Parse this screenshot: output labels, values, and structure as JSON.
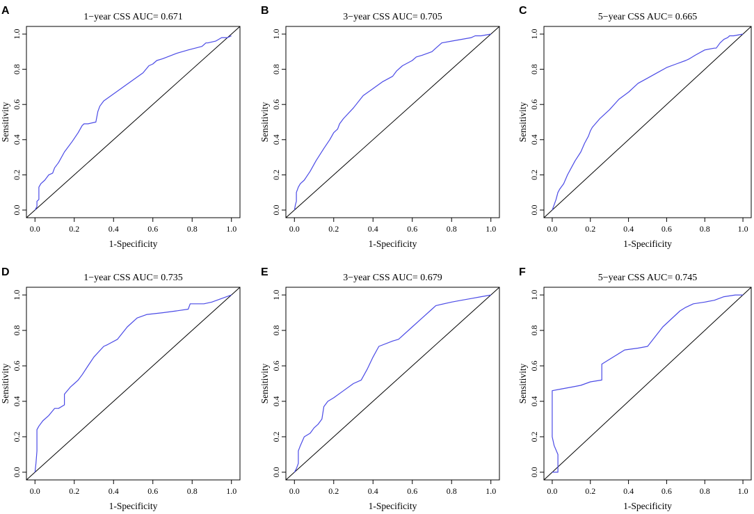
{
  "chart_data": [
    {
      "panel": "A",
      "type": "line",
      "title": "1−year CSS AUC= 0.671",
      "xlabel": "1-Specificity",
      "ylabel": "Sensitivity",
      "xlim": [
        0,
        1
      ],
      "ylim": [
        0,
        1
      ],
      "xticks": [
        "0.0",
        "0.2",
        "0.4",
        "0.6",
        "0.8",
        "1.0"
      ],
      "yticks": [
        "0.0",
        "0.2",
        "0.4",
        "0.6",
        "0.8",
        "1.0"
      ],
      "reference_line": [
        [
          0,
          0
        ],
        [
          1,
          1
        ]
      ],
      "series": [
        {
          "name": "ROC",
          "color": "#4a4ae6",
          "x": [
            0,
            0.01,
            0.01,
            0.02,
            0.02,
            0.03,
            0.05,
            0.07,
            0.09,
            0.1,
            0.12,
            0.15,
            0.19,
            0.22,
            0.24,
            0.25,
            0.27,
            0.31,
            0.32,
            0.33,
            0.35,
            0.45,
            0.55,
            0.58,
            0.6,
            0.62,
            0.65,
            0.72,
            0.78,
            0.85,
            0.87,
            0.88,
            0.92,
            0.95,
            0.98,
            1.0
          ],
          "y": [
            0,
            0.02,
            0.05,
            0.06,
            0.13,
            0.15,
            0.17,
            0.2,
            0.21,
            0.24,
            0.27,
            0.33,
            0.39,
            0.44,
            0.48,
            0.49,
            0.49,
            0.5,
            0.56,
            0.59,
            0.62,
            0.7,
            0.78,
            0.82,
            0.83,
            0.85,
            0.86,
            0.89,
            0.91,
            0.93,
            0.95,
            0.95,
            0.96,
            0.98,
            0.98,
            0.99
          ]
        }
      ]
    },
    {
      "panel": "B",
      "type": "line",
      "title": "3−year CSS AUC= 0.705",
      "xlabel": "1-Specificity",
      "ylabel": "Sensitivity",
      "xlim": [
        0,
        1
      ],
      "ylim": [
        0,
        1
      ],
      "xticks": [
        "0.0",
        "0.2",
        "0.4",
        "0.6",
        "0.8",
        "1.0"
      ],
      "yticks": [
        "0.0",
        "0.2",
        "0.4",
        "0.6",
        "0.8",
        "1.0"
      ],
      "reference_line": [
        [
          0,
          0
        ],
        [
          1,
          1
        ]
      ],
      "series": [
        {
          "name": "ROC",
          "color": "#4a4ae6",
          "x": [
            0,
            0.005,
            0.01,
            0.01,
            0.02,
            0.03,
            0.05,
            0.08,
            0.11,
            0.15,
            0.18,
            0.2,
            0.22,
            0.23,
            0.25,
            0.3,
            0.35,
            0.4,
            0.45,
            0.5,
            0.52,
            0.55,
            0.6,
            0.62,
            0.65,
            0.7,
            0.72,
            0.75,
            0.8,
            0.85,
            0.9,
            0.92,
            0.95,
            1.0
          ],
          "y": [
            0,
            0.03,
            0.05,
            0.1,
            0.13,
            0.15,
            0.17,
            0.22,
            0.28,
            0.35,
            0.4,
            0.44,
            0.46,
            0.49,
            0.52,
            0.58,
            0.65,
            0.69,
            0.73,
            0.76,
            0.79,
            0.82,
            0.85,
            0.87,
            0.88,
            0.9,
            0.92,
            0.95,
            0.96,
            0.97,
            0.98,
            0.99,
            0.99,
            1.0
          ]
        }
      ]
    },
    {
      "panel": "C",
      "type": "line",
      "title": "5−year CSS AUC= 0.665",
      "xlabel": "1-Specificity",
      "ylabel": "Sensitivity",
      "xlim": [
        0,
        1
      ],
      "ylim": [
        0,
        1
      ],
      "xticks": [
        "0.0",
        "0.2",
        "0.4",
        "0.6",
        "0.8",
        "1.0"
      ],
      "yticks": [
        "0.0",
        "0.2",
        "0.4",
        "0.6",
        "0.8",
        "1.0"
      ],
      "reference_line": [
        [
          0,
          0
        ],
        [
          1,
          1
        ]
      ],
      "series": [
        {
          "name": "ROC",
          "color": "#4a4ae6",
          "x": [
            0,
            0.01,
            0.02,
            0.03,
            0.04,
            0.06,
            0.08,
            0.1,
            0.12,
            0.15,
            0.17,
            0.19,
            0.2,
            0.21,
            0.25,
            0.3,
            0.35,
            0.4,
            0.45,
            0.5,
            0.55,
            0.6,
            0.65,
            0.7,
            0.72,
            0.75,
            0.8,
            0.85,
            0.86,
            0.88,
            0.9,
            0.92,
            0.93,
            0.95,
            1.0
          ],
          "y": [
            0,
            0.03,
            0.06,
            0.1,
            0.12,
            0.15,
            0.2,
            0.24,
            0.28,
            0.33,
            0.38,
            0.42,
            0.45,
            0.47,
            0.52,
            0.57,
            0.63,
            0.67,
            0.72,
            0.75,
            0.78,
            0.81,
            0.83,
            0.85,
            0.86,
            0.88,
            0.91,
            0.92,
            0.92,
            0.95,
            0.97,
            0.98,
            0.99,
            0.99,
            1.0
          ]
        }
      ]
    },
    {
      "panel": "D",
      "type": "line",
      "title": "1−year CSS AUC= 0.735",
      "xlabel": "1-Specificity",
      "ylabel": "Sensitivity",
      "xlim": [
        0,
        1
      ],
      "ylim": [
        0,
        1
      ],
      "xticks": [
        "0.0",
        "0.2",
        "0.4",
        "0.6",
        "0.8",
        "1.0"
      ],
      "yticks": [
        "0.0",
        "0.2",
        "0.4",
        "0.6",
        "0.8",
        "1.0"
      ],
      "reference_line": [
        [
          0,
          0
        ],
        [
          1,
          1
        ]
      ],
      "series": [
        {
          "name": "ROC",
          "color": "#4a4ae6",
          "x": [
            0,
            0.005,
            0.01,
            0.01,
            0.02,
            0.04,
            0.07,
            0.1,
            0.12,
            0.15,
            0.15,
            0.18,
            0.2,
            0.22,
            0.24,
            0.27,
            0.3,
            0.35,
            0.37,
            0.42,
            0.47,
            0.52,
            0.57,
            0.65,
            0.72,
            0.78,
            0.79,
            0.86,
            0.9,
            0.95,
            1.0
          ],
          "y": [
            0,
            0.05,
            0.12,
            0.24,
            0.26,
            0.29,
            0.32,
            0.36,
            0.36,
            0.38,
            0.44,
            0.48,
            0.5,
            0.52,
            0.55,
            0.6,
            0.65,
            0.71,
            0.72,
            0.75,
            0.82,
            0.87,
            0.89,
            0.9,
            0.91,
            0.92,
            0.95,
            0.95,
            0.96,
            0.98,
            1.0
          ]
        }
      ]
    },
    {
      "panel": "E",
      "type": "line",
      "title": "3−year CSS AUC= 0.679",
      "xlabel": "1-Specificity",
      "ylabel": "Sensitivity",
      "xlim": [
        0,
        1
      ],
      "ylim": [
        0,
        1
      ],
      "xticks": [
        "0.0",
        "0.2",
        "0.4",
        "0.6",
        "0.8",
        "1.0"
      ],
      "yticks": [
        "0.0",
        "0.2",
        "0.4",
        "0.6",
        "0.8",
        "1.0"
      ],
      "reference_line": [
        [
          0,
          0
        ],
        [
          1,
          1
        ]
      ],
      "series": [
        {
          "name": "ROC",
          "color": "#4a4ae6",
          "x": [
            0,
            0.01,
            0.02,
            0.02,
            0.03,
            0.05,
            0.08,
            0.1,
            0.12,
            0.14,
            0.14,
            0.15,
            0.17,
            0.2,
            0.25,
            0.3,
            0.34,
            0.37,
            0.4,
            0.43,
            0.5,
            0.53,
            0.6,
            0.65,
            0.7,
            0.72,
            0.8,
            0.85,
            0.9,
            0.95,
            1.0
          ],
          "y": [
            0,
            0.02,
            0.05,
            0.12,
            0.15,
            0.2,
            0.22,
            0.25,
            0.27,
            0.3,
            0.3,
            0.37,
            0.4,
            0.42,
            0.46,
            0.5,
            0.52,
            0.58,
            0.65,
            0.71,
            0.74,
            0.75,
            0.82,
            0.87,
            0.92,
            0.94,
            0.96,
            0.97,
            0.98,
            0.99,
            1.0
          ]
        }
      ]
    },
    {
      "panel": "F",
      "type": "line",
      "title": "5−year CSS AUC= 0.745",
      "xlabel": "1-Specificity",
      "ylabel": "Sensitivity",
      "xlim": [
        0,
        1
      ],
      "ylim": [
        0,
        1
      ],
      "xticks": [
        "0.0",
        "0.2",
        "0.4",
        "0.6",
        "0.8",
        "1.0"
      ],
      "yticks": [
        "0.0",
        "0.2",
        "0.4",
        "0.6",
        "0.8",
        "1.0"
      ],
      "reference_line": [
        [
          0,
          0
        ],
        [
          1,
          1
        ]
      ],
      "series": [
        {
          "name": "ROC",
          "color": "#4a4ae6",
          "x": [
            0,
            0.03,
            0.03,
            0.01,
            0.0,
            0.0,
            0.05,
            0.1,
            0.15,
            0.2,
            0.26,
            0.26,
            0.32,
            0.38,
            0.45,
            0.5,
            0.58,
            0.67,
            0.7,
            0.74,
            0.8,
            0.85,
            0.9,
            0.96,
            1.0
          ],
          "y": [
            0,
            0.0,
            0.1,
            0.15,
            0.2,
            0.46,
            0.47,
            0.48,
            0.49,
            0.51,
            0.52,
            0.61,
            0.65,
            0.69,
            0.7,
            0.71,
            0.82,
            0.91,
            0.93,
            0.95,
            0.96,
            0.97,
            0.99,
            1.0,
            1.0
          ]
        }
      ]
    }
  ]
}
